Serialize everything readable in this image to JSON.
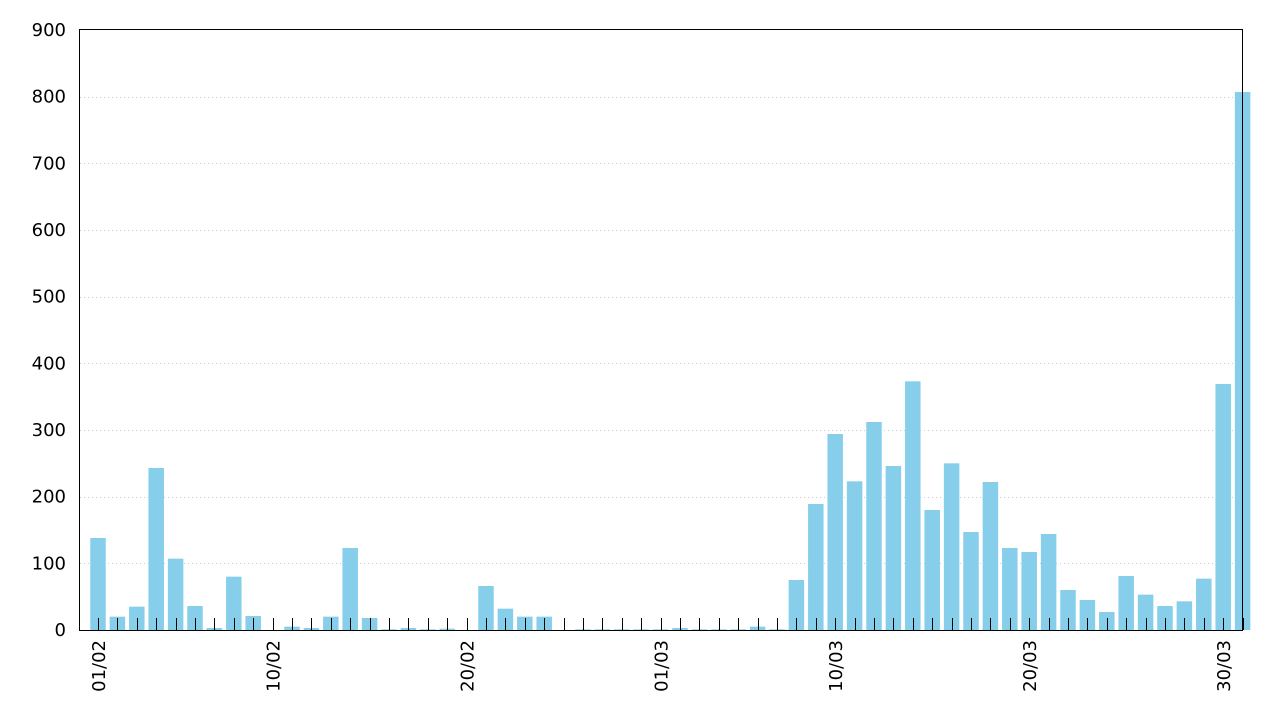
{
  "chart_data": {
    "type": "bar",
    "title": "",
    "xlabel": "",
    "ylabel": "",
    "ylim": [
      0,
      900
    ],
    "yticks": [
      0,
      100,
      200,
      300,
      400,
      500,
      600,
      700,
      800,
      900
    ],
    "grid": "horizontal dotted",
    "bar_color": "#87ceeb",
    "categories": [
      "01/02",
      "02/02",
      "03/02",
      "04/02",
      "05/02",
      "06/02",
      "07/02",
      "08/02",
      "09/02",
      "10/02",
      "11/02",
      "12/02",
      "13/02",
      "14/02",
      "15/02",
      "16/02",
      "17/02",
      "18/02",
      "19/02",
      "20/02",
      "21/02",
      "22/02",
      "23/02",
      "24/02",
      "25/02",
      "26/02",
      "27/02",
      "28/02",
      "29/02",
      "01/03",
      "02/03",
      "03/03",
      "04/03",
      "05/03",
      "06/03",
      "07/03",
      "08/03",
      "09/03",
      "10/03",
      "11/03",
      "12/03",
      "13/03",
      "14/03",
      "15/03",
      "16/03",
      "17/03",
      "18/03",
      "19/03",
      "20/03",
      "21/03",
      "22/03",
      "23/03",
      "24/03",
      "25/03",
      "26/03",
      "27/03",
      "28/03",
      "29/03",
      "30/03",
      "31/03"
    ],
    "values": [
      138,
      20,
      35,
      243,
      107,
      36,
      3,
      80,
      21,
      0,
      5,
      3,
      20,
      123,
      18,
      1,
      3,
      1,
      2,
      0,
      66,
      32,
      20,
      20,
      0,
      1,
      1,
      1,
      1,
      1,
      3,
      1,
      1,
      1,
      5,
      1,
      75,
      189,
      294,
      223,
      312,
      246,
      373,
      180,
      250,
      147,
      222,
      123,
      117,
      144,
      60,
      45,
      27,
      81,
      53,
      36,
      43,
      77,
      369,
      807
    ],
    "xtick_labels": [
      "01/02",
      "10/02",
      "20/02",
      "01/03",
      "10/03",
      "20/03",
      "30/03"
    ],
    "xtick_label_indices": [
      0,
      9,
      19,
      29,
      38,
      48,
      58
    ]
  }
}
